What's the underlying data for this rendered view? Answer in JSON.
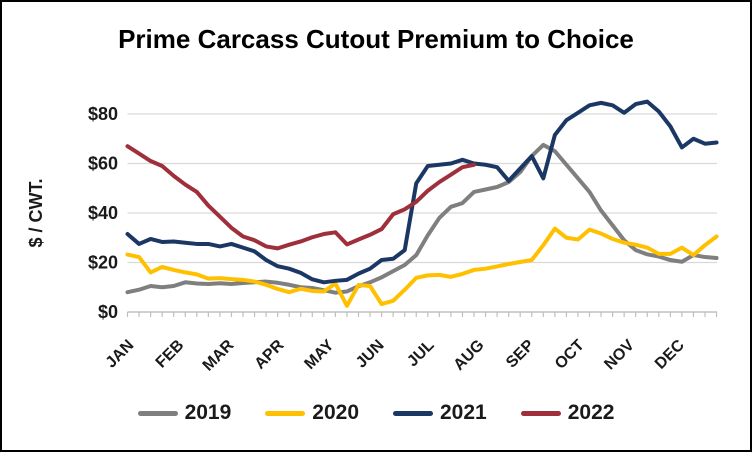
{
  "chart_data": {
    "type": "line",
    "title": "Prime Carcass Cutout Premium to Choice",
    "ylabel": "$ / CWT.",
    "xlabel": "",
    "x_unit": "week",
    "x_tick_labels": [
      "JAN",
      "FEB",
      "MAR",
      "APR",
      "MAY",
      "JUN",
      "JUL",
      "AUG",
      "SEP",
      "OCT",
      "NOV",
      "DEC"
    ],
    "yticks": [
      0,
      20,
      40,
      60,
      80
    ],
    "ytick_labels": [
      "$0",
      "$20",
      "$40",
      "$60",
      "$80"
    ],
    "ylim": [
      0,
      88
    ],
    "grid": "horizontal",
    "legend_position": "bottom",
    "style": {
      "gridline_color": "#D9D9D9",
      "axis_color": "#C0C0C0",
      "tick_color": "#BFBFBF",
      "label_color": "#1a1a1a",
      "line_width": 4
    },
    "series": [
      {
        "name": "2019",
        "color": "#7F7F7F",
        "values": [
          8,
          9,
          10.5,
          10,
          10.5,
          12,
          11.5,
          11.3,
          11.6,
          11.3,
          11.7,
          12,
          12.3,
          11.8,
          11,
          10,
          9.7,
          8.8,
          7.8,
          8.3,
          10.4,
          12,
          14,
          16.5,
          19,
          23,
          31,
          38,
          42.5,
          44,
          48.5,
          49.5,
          50.5,
          52.5,
          56.5,
          63,
          67.5,
          65,
          59.5,
          54,
          48.5,
          41,
          35,
          29,
          25,
          23.3,
          22.4,
          21,
          20.3,
          23,
          22.2,
          21.8
        ]
      },
      {
        "name": "2020",
        "color": "#FFC000",
        "values": [
          23.2,
          22.2,
          16,
          18.2,
          17,
          16,
          15.2,
          13.5,
          13.7,
          13.3,
          13,
          12.3,
          11,
          9.3,
          8,
          9.4,
          8.5,
          8.3,
          11.5,
          2.5,
          10.9,
          10.5,
          3.2,
          4.5,
          9,
          13.8,
          14.8,
          15,
          14.2,
          15.4,
          17,
          17.5,
          18.4,
          19.4,
          20.2,
          21,
          27,
          33.7,
          30,
          29.3,
          33.3,
          31.7,
          29.5,
          28,
          27.2,
          26,
          23.5,
          23.5,
          26,
          23,
          27,
          30.5
        ]
      },
      {
        "name": "2021",
        "color": "#1B3764",
        "values": [
          31.5,
          27.5,
          29.5,
          28.3,
          28.5,
          28,
          27.5,
          27.5,
          26.5,
          27.5,
          26,
          24.5,
          21,
          18.5,
          17.5,
          15.8,
          13.2,
          12,
          12.6,
          13,
          15.5,
          17.5,
          21,
          21.5,
          25,
          52,
          59,
          59.5,
          60,
          61.5,
          60,
          59.5,
          58.5,
          53,
          58,
          63,
          54,
          71.5,
          77.5,
          80.5,
          83.5,
          84.5,
          83.5,
          80.5,
          84,
          85,
          81,
          75,
          66.5,
          70,
          68,
          68.5
        ]
      },
      {
        "name": "2022",
        "color": "#9E2F3B",
        "values": [
          67,
          64,
          61,
          59,
          55,
          51.5,
          48.5,
          43,
          38.5,
          34,
          30.5,
          29,
          26.5,
          25.7,
          27.2,
          28.5,
          30.2,
          31.5,
          32.2,
          27.3,
          29.3,
          31.2,
          33.5,
          39.5,
          41.5,
          44.5,
          49,
          52.5,
          55.5,
          58.5,
          59.5
        ]
      }
    ]
  }
}
